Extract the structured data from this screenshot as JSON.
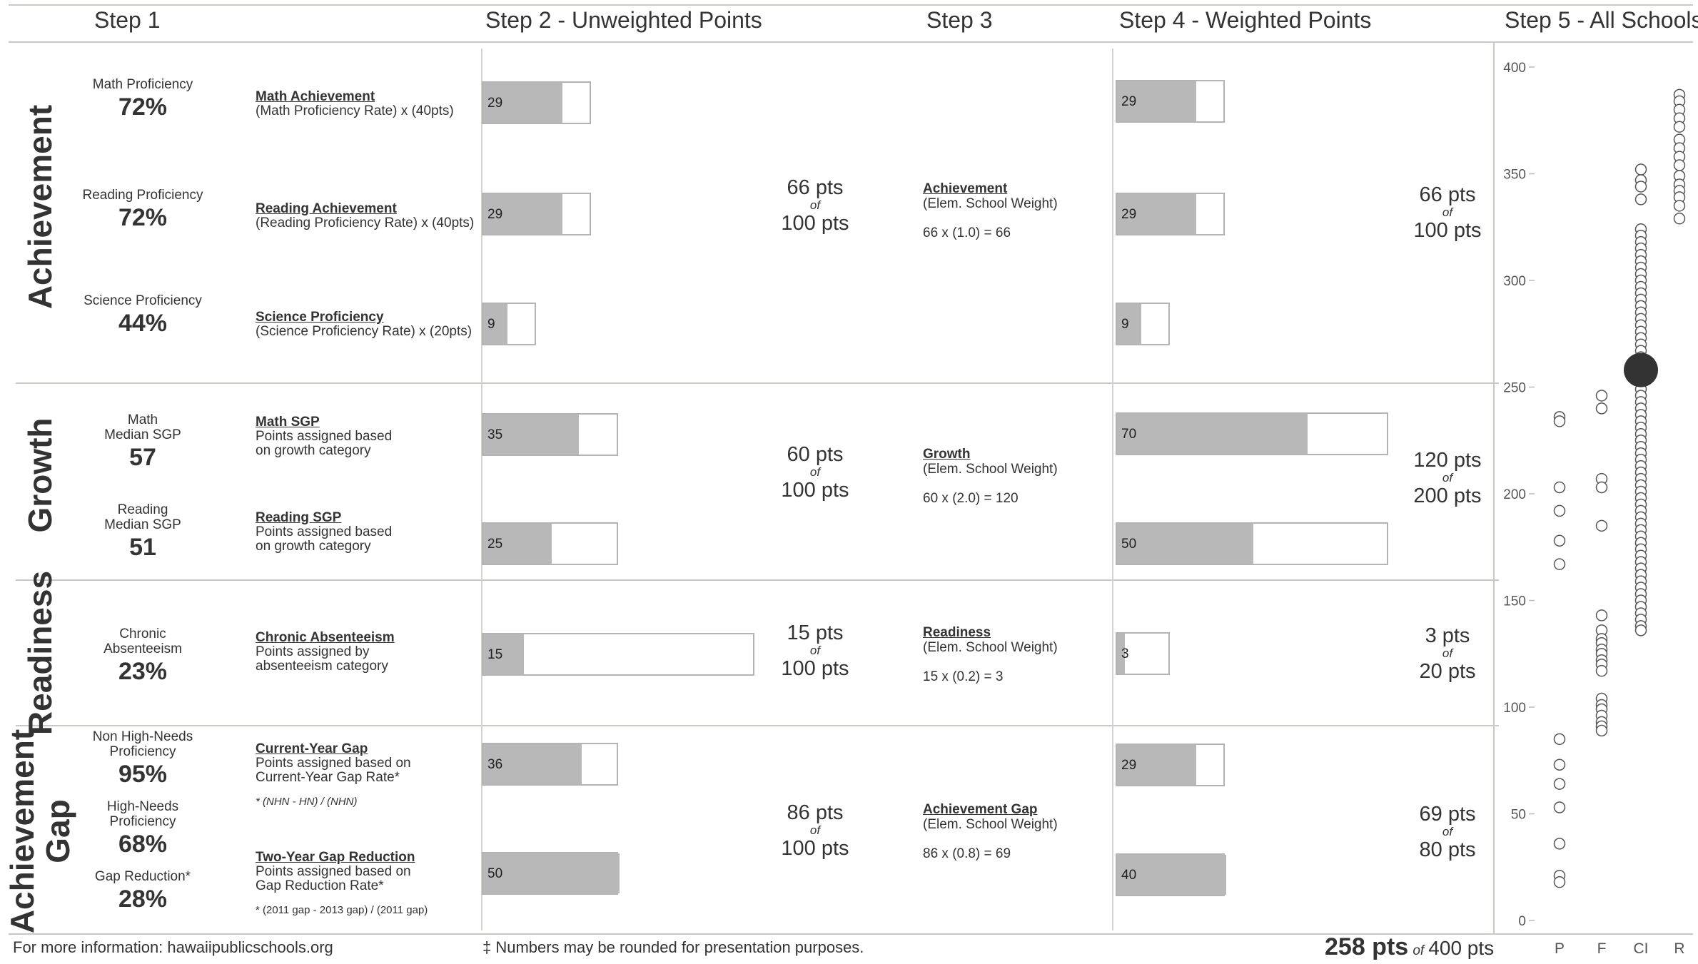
{
  "headers": {
    "step1": "Step 1",
    "step2": "Step 2 - Unweighted Points",
    "step3": "Step 3",
    "step4": "Step 4 - Weighted Points",
    "step5": "Step 5 - All Schools"
  },
  "categories": {
    "achievement": "Achievement",
    "growth": "Growth",
    "readiness": "Readiness",
    "gap_line1": "Achievement",
    "gap_line2": "Gap"
  },
  "metrics": {
    "math_prof": {
      "label": "Math Proficiency",
      "value": "72%"
    },
    "reading_prof": {
      "label": "Reading Proficiency",
      "value": "72%"
    },
    "science_prof": {
      "label": "Science Proficiency",
      "value": "44%"
    },
    "math_sgp": {
      "label1": "Math",
      "label2": "Median SGP",
      "value": "57"
    },
    "reading_sgp": {
      "label1": "Reading",
      "label2": "Median SGP",
      "value": "51"
    },
    "absenteeism": {
      "label1": "Chronic",
      "label2": "Absenteeism",
      "value": "23%"
    },
    "nhn_prof": {
      "label1": "Non High-Needs",
      "label2": "Proficiency",
      "value": "95%"
    },
    "hn_prof": {
      "label1": "High-Needs",
      "label2": "Proficiency",
      "value": "68%"
    },
    "gap_reduction": {
      "label": "Gap Reduction*",
      "value": "28%"
    }
  },
  "formulas": {
    "math_ach": {
      "title": "Math Achievement",
      "line1": "(Math Proficiency Rate) x (40pts)"
    },
    "reading_ach": {
      "title": "Reading Achievement",
      "line1": "(Reading Proficiency Rate) x (40pts)"
    },
    "science_prof": {
      "title": "Science Proficiency",
      "line1": "(Science Proficiency Rate) x (20pts)"
    },
    "math_sgp": {
      "title": "Math SGP",
      "line1": "Points assigned based",
      "line2": "on growth category"
    },
    "reading_sgp": {
      "title": "Reading SGP",
      "line1": "Points assigned based",
      "line2": "on growth category"
    },
    "absenteeism": {
      "title": "Chronic Absenteeism",
      "line1": "Points assigned by",
      "line2": "absenteeism category"
    },
    "current_gap": {
      "title": "Current-Year Gap",
      "line1": "Points assigned based on",
      "line2": "Current-Year Gap Rate*",
      "note": "* (NHN - HN) / (NHN)"
    },
    "two_year_gap": {
      "title": "Two-Year Gap Reduction",
      "line1": "Points assigned based on",
      "line2": "Gap Reduction Rate*",
      "note": "* (2011 gap - 2013 gap) / (2011 gap)"
    }
  },
  "step2_bars": {
    "math": {
      "value": 29,
      "max": 40,
      "label": "29"
    },
    "reading": {
      "value": 29,
      "max": 40,
      "label": "29"
    },
    "science": {
      "value": 9,
      "max": 20,
      "label": "9"
    },
    "math_sgp": {
      "value": 35,
      "max": 50,
      "label": "35"
    },
    "reading_sgp": {
      "value": 25,
      "max": 50,
      "label": "25"
    },
    "absenteeism": {
      "value": 15,
      "max": 100,
      "label": "15"
    },
    "current_gap": {
      "value": 36,
      "max": 50,
      "label": "36"
    },
    "two_year_gap": {
      "value": 50,
      "max": 50,
      "label": "50"
    }
  },
  "step2_totals": {
    "achievement": {
      "pts": "66 pts",
      "of": "of",
      "max": "100 pts"
    },
    "growth": {
      "pts": "60 pts",
      "of": "of",
      "max": "100 pts"
    },
    "readiness": {
      "pts": "15 pts",
      "of": "of",
      "max": "100 pts"
    },
    "gap": {
      "pts": "86 pts",
      "of": "of",
      "max": "100 pts"
    }
  },
  "step3_weights": {
    "achievement": {
      "title": "Achievement",
      "sub": "(Elem. School Weight)",
      "calc": "66 x (1.0) = 66"
    },
    "growth": {
      "title": "Growth",
      "sub": "(Elem. School Weight)",
      "calc": "60 x (2.0) = 120"
    },
    "readiness": {
      "title": "Readiness",
      "sub": "(Elem. School Weight)",
      "calc": "15 x (0.2) = 3"
    },
    "gap": {
      "title": "Achievement Gap",
      "sub": "(Elem. School Weight)",
      "calc": "86 x (0.8) = 69"
    }
  },
  "step4_bars": {
    "math": {
      "value": 29,
      "max": 40,
      "label": "29"
    },
    "reading": {
      "value": 29,
      "max": 40,
      "label": "29"
    },
    "science": {
      "value": 9,
      "max": 20,
      "label": "9"
    },
    "math_sgp": {
      "value": 70,
      "max": 100,
      "label": "70"
    },
    "reading_sgp": {
      "value": 50,
      "max": 100,
      "label": "50"
    },
    "absenteeism": {
      "value": 3,
      "max": 20,
      "label": "3"
    },
    "current_gap": {
      "value": 29,
      "max": 40,
      "label": "29"
    },
    "two_year_gap": {
      "value": 40,
      "max": 40,
      "label": "40"
    }
  },
  "step4_totals": {
    "achievement": {
      "pts": "66 pts",
      "of": "of",
      "max": "100 pts"
    },
    "growth": {
      "pts": "120 pts",
      "of": "of",
      "max": "200 pts"
    },
    "readiness": {
      "pts": "3 pts",
      "of": "of",
      "max": "20 pts"
    },
    "gap": {
      "pts": "69 pts",
      "of": "of",
      "max": "80 pts"
    }
  },
  "footer": {
    "info": "For more information: hawaiipublicschools.org",
    "note": "‡ Numbers may be rounded for presentation purposes.",
    "total_pts": "258 pts",
    "total_of": "of",
    "total_max": "400 pts"
  },
  "chart_data": {
    "type": "scatter",
    "title": "Step 5 - All Schools",
    "xlabel": "",
    "ylabel": "",
    "categories": [
      "P",
      "F",
      "CI",
      "R"
    ],
    "ylim": [
      0,
      400
    ],
    "yticks": [
      0,
      50,
      100,
      150,
      200,
      250,
      300,
      350,
      400
    ],
    "series": [
      {
        "category": "P",
        "values": [
          236,
          234,
          203,
          192,
          178,
          167,
          85,
          73,
          64,
          53,
          36,
          21,
          18
        ]
      },
      {
        "category": "F",
        "values": [
          246,
          240,
          207,
          203,
          185,
          143,
          136,
          132,
          130,
          127,
          125,
          122,
          120,
          117,
          104,
          101,
          99,
          96,
          93,
          91,
          89
        ]
      },
      {
        "category": "CI",
        "values": [
          352,
          347,
          344,
          338,
          324,
          321,
          318,
          315,
          312,
          309,
          306,
          303,
          300,
          297,
          294,
          291,
          288,
          285,
          282,
          279,
          276,
          273,
          270,
          267,
          264,
          261,
          258,
          255,
          252,
          249,
          246,
          243,
          240,
          237,
          234,
          231,
          228,
          225,
          222,
          219,
          216,
          213,
          210,
          207,
          204,
          201,
          198,
          195,
          192,
          189,
          186,
          183,
          180,
          177,
          174,
          171,
          168,
          165,
          162,
          159,
          156,
          153,
          150,
          147,
          144,
          141,
          138,
          136
        ]
      },
      {
        "category": "R",
        "values": [
          387,
          384,
          380,
          376,
          372,
          366,
          362,
          358,
          354,
          349,
          345,
          342,
          339,
          335,
          329
        ]
      }
    ],
    "highlight": {
      "category": "CI",
      "value": 258
    }
  }
}
